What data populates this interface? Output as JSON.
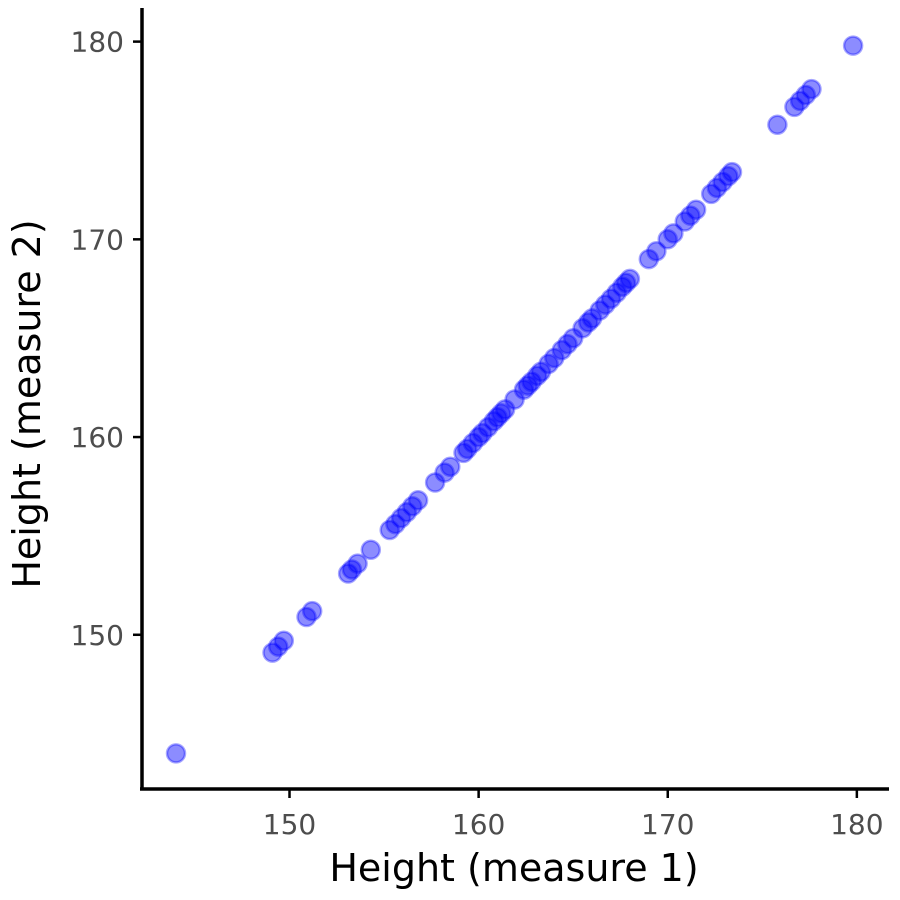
{
  "chart_data": {
    "type": "scatter",
    "title": "",
    "xlabel": "Height (measure 1)",
    "ylabel": "Height (measure 2)",
    "xlim": [
      142.2,
      181.7
    ],
    "ylim": [
      142.2,
      181.7
    ],
    "xticks": [
      150,
      160,
      170,
      180
    ],
    "yticks": [
      150,
      160,
      170,
      180
    ],
    "xtick_labels": [
      "150",
      "160",
      "170",
      "180"
    ],
    "ytick_labels": [
      "150",
      "160",
      "170",
      "180"
    ],
    "grid": false,
    "legend": "none",
    "point_color": "#0000ff",
    "point_alpha": 0.45,
    "series": [
      {
        "points": [
          [
            144.0,
            144.0
          ],
          [
            149.1,
            149.1
          ],
          [
            149.4,
            149.4
          ],
          [
            149.7,
            149.7
          ],
          [
            150.9,
            150.9
          ],
          [
            151.2,
            151.2
          ],
          [
            153.1,
            153.1
          ],
          [
            153.3,
            153.3
          ],
          [
            153.6,
            153.6
          ],
          [
            154.3,
            154.3
          ],
          [
            155.3,
            155.3
          ],
          [
            155.6,
            155.6
          ],
          [
            155.9,
            155.9
          ],
          [
            156.2,
            156.2
          ],
          [
            156.5,
            156.5
          ],
          [
            156.8,
            156.8
          ],
          [
            157.7,
            157.7
          ],
          [
            158.2,
            158.2
          ],
          [
            158.5,
            158.5
          ],
          [
            159.2,
            159.2
          ],
          [
            159.4,
            159.4
          ],
          [
            159.7,
            159.7
          ],
          [
            160.0,
            160.0
          ],
          [
            160.2,
            160.2
          ],
          [
            160.5,
            160.5
          ],
          [
            160.8,
            160.8
          ],
          [
            161.0,
            161.0
          ],
          [
            161.2,
            161.2
          ],
          [
            161.4,
            161.4
          ],
          [
            161.9,
            161.9
          ],
          [
            162.4,
            162.4
          ],
          [
            162.6,
            162.6
          ],
          [
            162.8,
            162.8
          ],
          [
            163.1,
            163.1
          ],
          [
            163.3,
            163.3
          ],
          [
            163.7,
            163.7
          ],
          [
            164.0,
            164.0
          ],
          [
            164.4,
            164.4
          ],
          [
            164.7,
            164.7
          ],
          [
            165.0,
            165.0
          ],
          [
            165.5,
            165.5
          ],
          [
            165.8,
            165.8
          ],
          [
            166.0,
            166.0
          ],
          [
            166.4,
            166.4
          ],
          [
            166.7,
            166.7
          ],
          [
            167.0,
            167.0
          ],
          [
            167.3,
            167.3
          ],
          [
            167.6,
            167.6
          ],
          [
            167.8,
            167.8
          ],
          [
            168.0,
            168.0
          ],
          [
            169.0,
            169.0
          ],
          [
            169.4,
            169.4
          ],
          [
            170.0,
            170.0
          ],
          [
            170.3,
            170.3
          ],
          [
            170.9,
            170.9
          ],
          [
            171.2,
            171.2
          ],
          [
            171.5,
            171.5
          ],
          [
            172.3,
            172.3
          ],
          [
            172.6,
            172.6
          ],
          [
            172.9,
            172.9
          ],
          [
            173.2,
            173.2
          ],
          [
            173.4,
            173.4
          ],
          [
            175.8,
            175.8
          ],
          [
            176.7,
            176.7
          ],
          [
            177.0,
            177.0
          ],
          [
            177.3,
            177.3
          ],
          [
            177.6,
            177.6
          ],
          [
            179.8,
            179.8
          ]
        ]
      }
    ]
  }
}
